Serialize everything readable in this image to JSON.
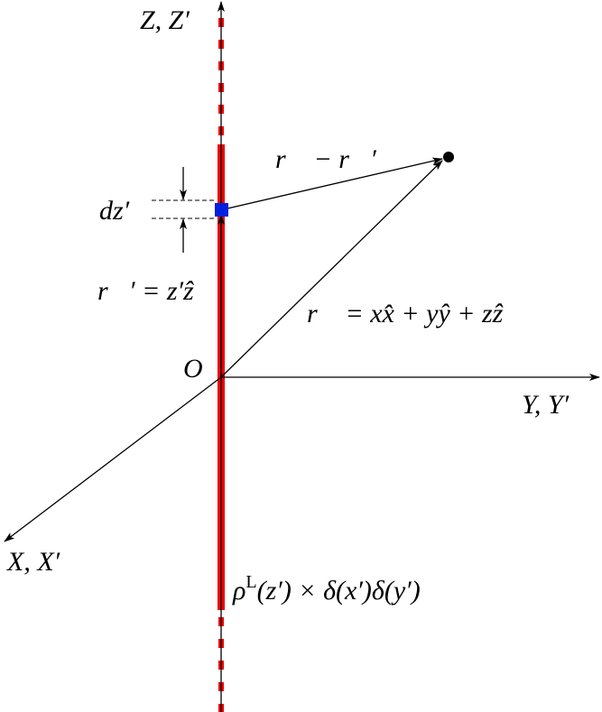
{
  "axes": {
    "z": "Z, Z′",
    "y": "Y, Y′",
    "x": "X, X′",
    "origin": "O"
  },
  "labels": {
    "dz": "dz′",
    "r_prime": "r⃗′ = z′ẑ",
    "r_diff": "r⃗ − r⃗′",
    "r": "r⃗ = xx̂ + yŷ + zẑ",
    "density": {
      "base": "ρ",
      "sup": "L",
      "rest": "(z′) × δ(x′)δ(y′)"
    }
  }
}
